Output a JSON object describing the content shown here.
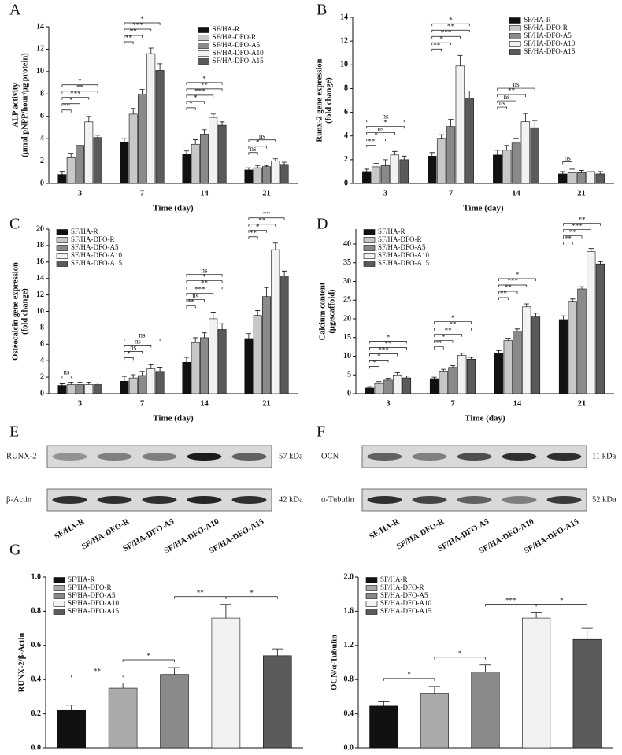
{
  "chart_data": [
    {
      "type": "bar",
      "panel_label": "A",
      "ylabel": [
        "ALP activity",
        "(μmol pNPP/hour/μg protein)"
      ],
      "xlabel": "Time (day)",
      "categories": [
        "3",
        "7",
        "14",
        "21"
      ],
      "ylim": [
        0,
        14
      ],
      "yticks": [
        0,
        2,
        4,
        6,
        8,
        10,
        12,
        14
      ],
      "legend": "upper right",
      "series": [
        {
          "name": "SF/HA-R",
          "color": "#111111",
          "values": [
            0.8,
            3.7,
            2.6,
            1.2
          ],
          "errors": [
            0.3,
            0.3,
            0.3,
            0.2
          ]
        },
        {
          "name": "SF/HA-DFO-R",
          "color": "#c8c8c8",
          "values": [
            2.3,
            6.2,
            3.5,
            1.4
          ],
          "errors": [
            0.4,
            0.5,
            0.4,
            0.2
          ]
        },
        {
          "name": "SF/HA-DFO-A5",
          "color": "#8a8a8a",
          "values": [
            3.4,
            8.0,
            4.4,
            1.5
          ],
          "errors": [
            0.3,
            0.4,
            0.4,
            0.1
          ]
        },
        {
          "name": "SF/HA-DFO-A10",
          "color": "#f2f2f2",
          "values": [
            5.5,
            11.6,
            5.9,
            2.0
          ],
          "errors": [
            0.5,
            0.5,
            0.3,
            0.2
          ]
        },
        {
          "name": "SF/HA-DFO-A15",
          "color": "#5a5a5a",
          "values": [
            4.1,
            10.1,
            5.2,
            1.7
          ],
          "errors": [
            0.2,
            0.6,
            0.3,
            0.2
          ]
        }
      ],
      "significance": [
        [
          "**",
          "*",
          "***",
          "**",
          "*"
        ],
        [
          "**",
          "**",
          "***",
          "*"
        ],
        [
          "*",
          "*",
          "***",
          "**",
          "*"
        ],
        [
          "ns",
          "*",
          "ns"
        ]
      ]
    },
    {
      "type": "bar",
      "panel_label": "B",
      "ylabel": [
        "Runx-2 gene expression",
        "(fold change)"
      ],
      "xlabel": "Time (day)",
      "categories": [
        "3",
        "7",
        "14",
        "21"
      ],
      "ylim": [
        0,
        14
      ],
      "yticks": [
        0,
        2,
        4,
        6,
        8,
        10,
        12,
        14
      ],
      "legend": "upper right",
      "series": [
        {
          "name": "SF/HA-R",
          "color": "#111111",
          "values": [
            1.0,
            2.3,
            2.4,
            0.8
          ],
          "errors": [
            0.2,
            0.3,
            0.4,
            0.2
          ]
        },
        {
          "name": "SF/HA-DFO-R",
          "color": "#c8c8c8",
          "values": [
            1.4,
            3.8,
            2.8,
            0.9
          ],
          "errors": [
            0.3,
            0.3,
            0.4,
            0.3
          ]
        },
        {
          "name": "SF/HA-DFO-A5",
          "color": "#8a8a8a",
          "values": [
            1.5,
            4.8,
            3.4,
            0.9
          ],
          "errors": [
            0.5,
            0.6,
            0.4,
            0.2
          ]
        },
        {
          "name": "SF/HA-DFO-A10",
          "color": "#f2f2f2",
          "values": [
            2.4,
            9.9,
            5.2,
            1.0
          ],
          "errors": [
            0.3,
            0.9,
            0.7,
            0.3
          ]
        },
        {
          "name": "SF/HA-DFO-A15",
          "color": "#5a5a5a",
          "values": [
            2.0,
            7.2,
            4.7,
            0.8
          ],
          "errors": [
            0.3,
            0.6,
            0.6,
            0.2
          ]
        }
      ],
      "significance": [
        [
          "**",
          "*",
          "ns",
          "*",
          "ns"
        ],
        [
          "**",
          "*",
          "***",
          "**",
          "*"
        ],
        [
          "ns",
          "ns",
          "**",
          "ns"
        ],
        [
          "ns"
        ]
      ]
    },
    {
      "type": "bar",
      "panel_label": "C",
      "ylabel": [
        "Osteocalcin gene expression",
        "(fold change)"
      ],
      "xlabel": "Time (day)",
      "categories": [
        "3",
        "7",
        "14",
        "21"
      ],
      "ylim": [
        0,
        20
      ],
      "yticks": [
        0,
        2,
        4,
        6,
        8,
        10,
        12,
        14,
        16,
        18,
        20
      ],
      "legend": "upper left",
      "series": [
        {
          "name": "SF/HA-R",
          "color": "#111111",
          "values": [
            1.0,
            1.5,
            3.8,
            6.7
          ],
          "errors": [
            0.2,
            0.6,
            0.6,
            0.6
          ]
        },
        {
          "name": "SF/HA-DFO-R",
          "color": "#c8c8c8",
          "values": [
            1.1,
            1.9,
            6.2,
            9.5
          ],
          "errors": [
            0.3,
            0.4,
            0.6,
            0.6
          ]
        },
        {
          "name": "SF/HA-DFO-A5",
          "color": "#8a8a8a",
          "values": [
            1.1,
            2.2,
            6.8,
            11.8
          ],
          "errors": [
            0.3,
            0.5,
            0.6,
            1.1
          ]
        },
        {
          "name": "SF/HA-DFO-A10",
          "color": "#f2f2f2",
          "values": [
            1.1,
            3.0,
            9.1,
            17.5
          ],
          "errors": [
            0.3,
            0.6,
            0.8,
            0.8
          ]
        },
        {
          "name": "SF/HA-DFO-A15",
          "color": "#5a5a5a",
          "values": [
            1.1,
            2.7,
            7.8,
            14.3
          ],
          "errors": [
            0.2,
            0.5,
            0.7,
            0.6
          ]
        }
      ],
      "significance": [
        [
          "ns"
        ],
        [
          "*",
          "ns",
          "ns",
          "ns"
        ],
        [
          "**",
          "ns",
          "***",
          "**",
          "*",
          "ns"
        ],
        [
          "**",
          "*",
          "**",
          "**"
        ]
      ]
    },
    {
      "type": "bar",
      "panel_label": "D",
      "ylabel": [
        "Calcium content",
        "(μg/scaffold)"
      ],
      "xlabel": "Time (day)",
      "categories": [
        "3",
        "7",
        "14",
        "21"
      ],
      "ylim": [
        0,
        44
      ],
      "yticks": [
        0,
        5,
        10,
        15,
        20,
        25,
        30,
        35,
        40
      ],
      "legend": "upper left",
      "series": [
        {
          "name": "SF/HA-R",
          "color": "#111111",
          "values": [
            1.5,
            4.0,
            10.8,
            19.8
          ],
          "errors": [
            0.4,
            0.4,
            0.7,
            1.0
          ]
        },
        {
          "name": "SF/HA-DFO-R",
          "color": "#c8c8c8",
          "values": [
            2.7,
            6.0,
            14.2,
            24.7
          ],
          "errors": [
            0.5,
            0.5,
            0.6,
            0.6
          ]
        },
        {
          "name": "SF/HA-DFO-A5",
          "color": "#8a8a8a",
          "values": [
            3.6,
            7.0,
            16.7,
            28.0
          ],
          "errors": [
            0.5,
            0.5,
            0.6,
            0.6
          ]
        },
        {
          "name": "SF/HA-DFO-A10",
          "color": "#f2f2f2",
          "values": [
            5.0,
            10.2,
            23.2,
            38.0
          ],
          "errors": [
            0.6,
            0.6,
            0.8,
            0.8
          ]
        },
        {
          "name": "SF/HA-DFO-A15",
          "color": "#5a5a5a",
          "values": [
            4.2,
            9.2,
            20.5,
            34.7
          ],
          "errors": [
            0.5,
            0.5,
            1.0,
            0.6
          ]
        }
      ],
      "significance": [
        [
          "*",
          "*",
          "***",
          "**",
          "*"
        ],
        [
          "**",
          "*",
          "**",
          "**",
          "*"
        ],
        [
          "**",
          "**",
          "***",
          "*"
        ],
        [
          "**",
          "**",
          "***",
          "**"
        ]
      ]
    },
    {
      "type": "bar",
      "panel_label": "G",
      "ylabel": [
        "RUNX-2/β-Actin"
      ],
      "categories": [
        "SF/HA-R",
        "SF/HA-DFO-R",
        "SF/HA-DFO-A5",
        "SF/HA-DFO-A10",
        "SF/HA-DFO-A15"
      ],
      "colors": [
        "#111111",
        "#aaaaaa",
        "#8a8a8a",
        "#f2f2f2",
        "#5a5a5a"
      ],
      "values": [
        0.22,
        0.35,
        0.43,
        0.76,
        0.54
      ],
      "errors": [
        0.03,
        0.03,
        0.04,
        0.08,
        0.04
      ],
      "ylim": [
        0,
        1.0
      ],
      "yticks": [
        {
          "value": 0,
          "label": "0.0"
        },
        0.2,
        0.4,
        0.6,
        0.8,
        {
          "value": 1,
          "label": "1.0"
        }
      ],
      "legend": "upper left",
      "significance": [
        "**",
        "*",
        "**",
        "*"
      ]
    },
    {
      "type": "bar",
      "ylabel": [
        "OCN/α-Tubulin"
      ],
      "categories": [
        "SF/HA-R",
        "SF/HA-DFO-R",
        "SF/HA-DFO-A5",
        "SF/HA-DFO-A10",
        "SF/HA-DFO-A15"
      ],
      "colors": [
        "#111111",
        "#aaaaaa",
        "#8a8a8a",
        "#f2f2f2",
        "#5a5a5a"
      ],
      "values": [
        0.49,
        0.64,
        0.89,
        1.52,
        1.27
      ],
      "errors": [
        0.05,
        0.08,
        0.08,
        0.07,
        0.13
      ],
      "ylim": [
        0,
        2.0
      ],
      "yticks": [
        {
          "value": 0,
          "label": "0.0"
        },
        0.4,
        0.8,
        1.2,
        1.6,
        {
          "value": 2,
          "label": "2.0"
        }
      ],
      "legend": "upper left",
      "significance": [
        "*",
        "*",
        "***",
        "*"
      ]
    }
  ],
  "blots": [
    {
      "panel_label": "E",
      "rows": [
        {
          "name": "RUNX-2",
          "size": "57 kDa"
        },
        {
          "name": "β-Actin",
          "size": "42 kDa"
        }
      ],
      "lanes": [
        "SF/HA-R",
        "SF/HA-DFO-R",
        "SF/HA-DFO-A5",
        "SF/HA-DFO-A10",
        "SF/HA-DFO-A15"
      ]
    },
    {
      "panel_label": "F",
      "rows": [
        {
          "name": "OCN",
          "size": "11 kDa"
        },
        {
          "name": "α-Tubulin",
          "size": "52 kDa"
        }
      ],
      "lanes": [
        "SF/HA-R",
        "SF/HA-DFO-R",
        "SF/HA-DFO-A5",
        "SF/HA-DFO-A10",
        "SF/HA-DFO-A15"
      ]
    }
  ]
}
